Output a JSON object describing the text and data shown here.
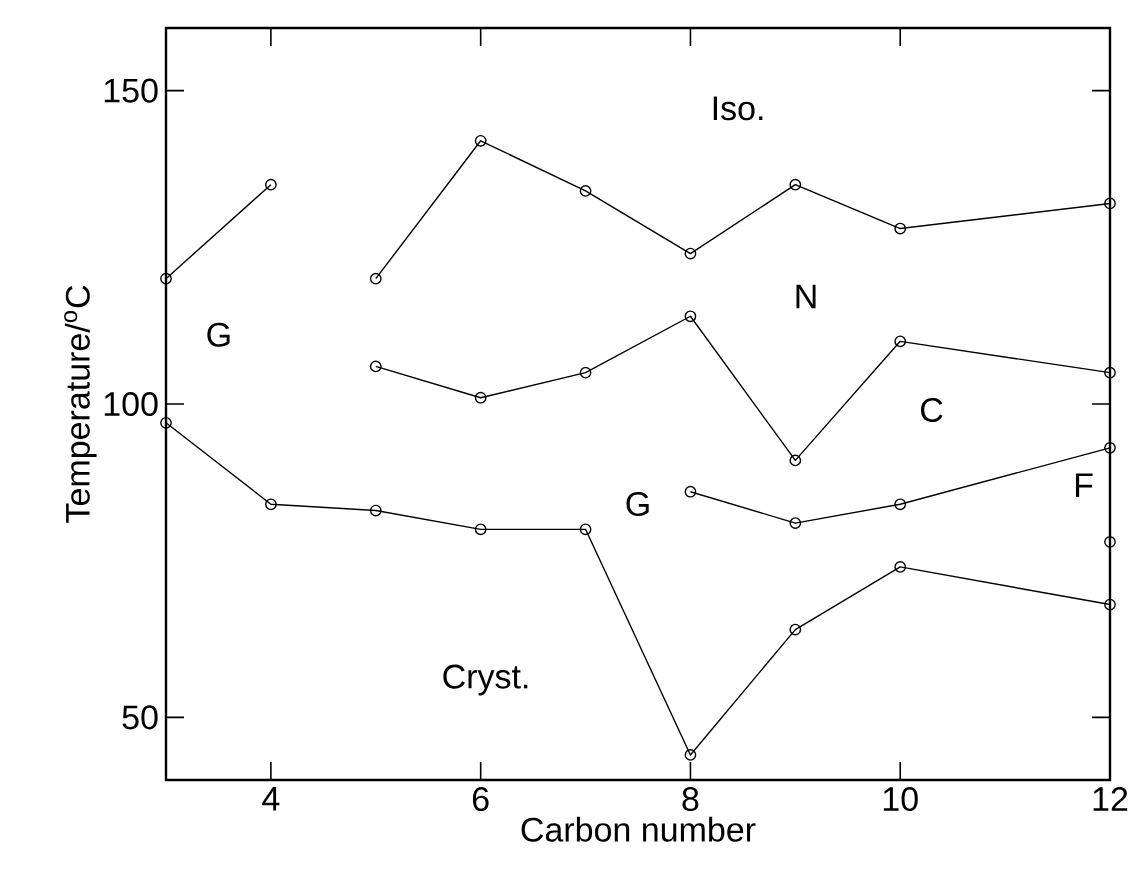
{
  "chart_data": {
    "type": "line",
    "xlabel": "Carbon number",
    "ylabel": "Temperature/$^{o}$C",
    "xlim": [
      3,
      12
    ],
    "ylim": [
      40,
      160
    ],
    "xticks": [
      4,
      6,
      8,
      10,
      12
    ],
    "yticks": [
      50,
      100,
      150
    ],
    "marker": "circle",
    "line_style": "solid",
    "series": [
      {
        "color": "#000000",
        "x": [
          3,
          4
        ],
        "values": [
          120,
          135
        ]
      },
      {
        "color": "#000000",
        "x": [
          5,
          6,
          7,
          8,
          9,
          10,
          12
        ],
        "values": [
          120,
          142,
          134,
          124,
          135,
          128,
          132
        ]
      },
      {
        "color": "#000000",
        "x": [
          5,
          6,
          7,
          8,
          9,
          10,
          12
        ],
        "values": [
          106,
          101,
          105,
          114,
          91,
          110,
          105
        ]
      },
      {
        "color": "#000000",
        "x": [
          3,
          4,
          5,
          6,
          7,
          8,
          9,
          10,
          12
        ],
        "values": [
          97,
          84,
          83,
          80,
          80,
          44,
          64,
          74,
          68
        ]
      },
      {
        "color": "#000000",
        "x": [
          8,
          9,
          10,
          12
        ],
        "values": [
          86,
          81,
          84,
          93
        ]
      },
      {
        "color": "#000000",
        "type": "scatter",
        "x": [
          12
        ],
        "values": [
          78
        ]
      }
    ],
    "annotations": [
      "Iso.",
      "G",
      "N",
      "C",
      "F",
      "G",
      "Cryst."
    ]
  }
}
